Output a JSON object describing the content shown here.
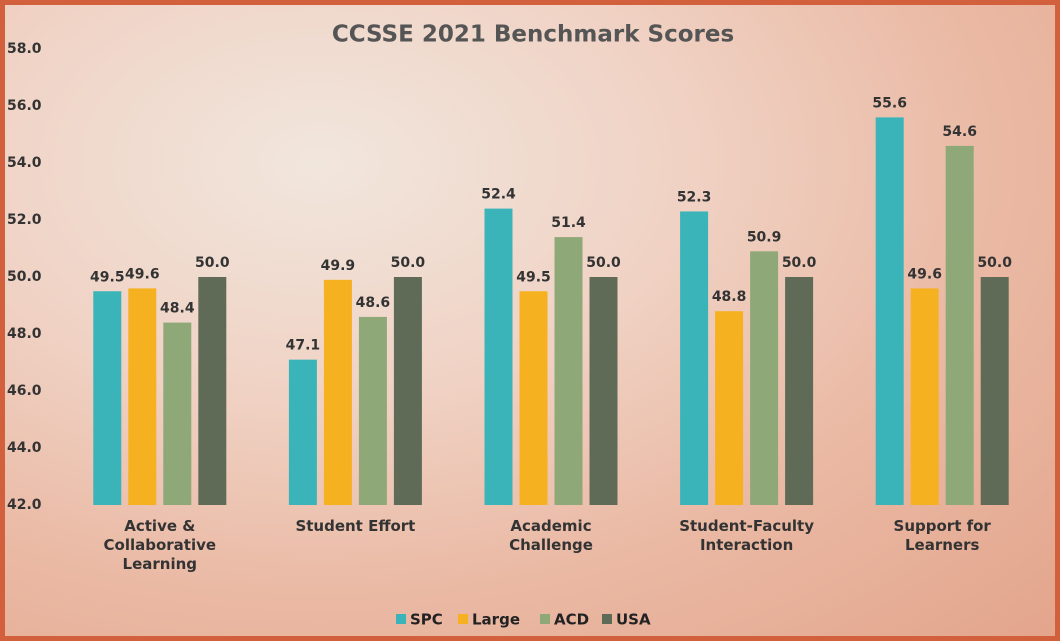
{
  "chart_data": {
    "type": "bar",
    "title": "CCSSE 2021 Benchmark Scores",
    "categories": [
      "Active & Collaborative Learning",
      "Student Effort",
      "Academic Challenge",
      "Student-Faculty Interaction",
      "Support for Learners"
    ],
    "series": [
      {
        "name": "SPC",
        "color": "#3ab4b9",
        "values": [
          49.5,
          47.1,
          52.4,
          52.3,
          55.6
        ],
        "value_labels": [
          "49.5",
          "47.1",
          "52.4",
          "52.3",
          "55.6"
        ]
      },
      {
        "name": "Large",
        "color": "#f5b120",
        "values": [
          49.6,
          49.9,
          49.5,
          48.8,
          49.6
        ],
        "value_labels": [
          "49.6",
          "49.9",
          "49.5",
          "48.8",
          "49.6"
        ]
      },
      {
        "name": "ACD",
        "color": "#8ea877",
        "values": [
          48.4,
          48.6,
          51.4,
          50.9,
          54.6
        ],
        "value_labels": [
          "48.4",
          "48.6",
          "51.4",
          "50.9",
          "54.6"
        ]
      },
      {
        "name": "USA",
        "color": "#5f6b56",
        "values": [
          50,
          50,
          50,
          50,
          50
        ],
        "value_labels": [
          "50.0",
          "50.0",
          "50.0",
          "50.0",
          "50.0"
        ]
      }
    ],
    "ylim": [
      42,
      58
    ],
    "yticks": [
      {
        "value": 42,
        "label": "42.0"
      },
      {
        "value": 44,
        "label": "44.0"
      },
      {
        "value": 46,
        "label": "46.0"
      },
      {
        "value": 48,
        "label": "48.0"
      },
      {
        "value": 50,
        "label": "50.0"
      },
      {
        "value": 52,
        "label": "52.0"
      },
      {
        "value": 54,
        "label": "54.0"
      },
      {
        "value": 56,
        "label": "56.0"
      },
      {
        "value": 58,
        "label": "58.0"
      }
    ]
  }
}
